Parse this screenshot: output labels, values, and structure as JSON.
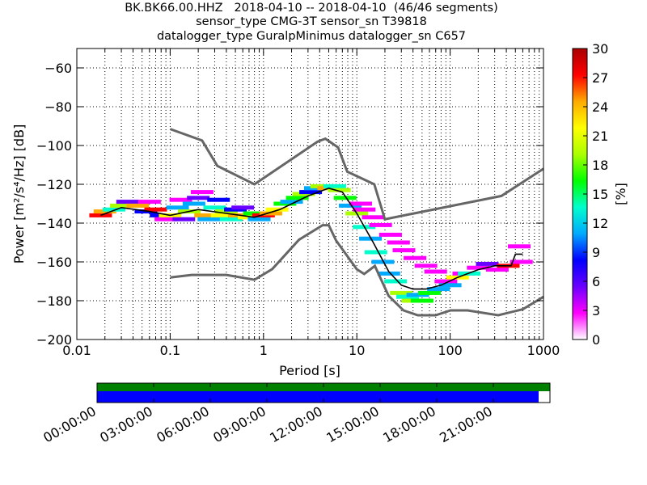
{
  "title": {
    "line1": "BK.BK66.00.HHZ   2018-04-10 -- 2018-04-10  (46/46 segments)",
    "line2": "sensor_type CMG-3T sensor_sn T39818",
    "line3": "datalogger_type GuralpMinimus datalogger_sn C657"
  },
  "chart_data": {
    "type": "heatmap",
    "xlabel": "Period [s]",
    "ylabel": "Power [m²/s⁴/Hz] [dB]",
    "xscale": "log",
    "xlim": [
      0.01,
      1000
    ],
    "ylim": [
      -200,
      -50
    ],
    "x_ticks": [
      {
        "value": 0.01,
        "label": "0.01"
      },
      {
        "value": 0.1,
        "label": "0.1"
      },
      {
        "value": 1,
        "label": "1"
      },
      {
        "value": 10,
        "label": "10"
      },
      {
        "value": 100,
        "label": "100"
      },
      {
        "value": 1000,
        "label": "1000"
      }
    ],
    "y_ticks": [
      {
        "value": -60,
        "label": "−60"
      },
      {
        "value": -80,
        "label": "−80"
      },
      {
        "value": -100,
        "label": "−100"
      },
      {
        "value": -120,
        "label": "−120"
      },
      {
        "value": -140,
        "label": "−140"
      },
      {
        "value": -160,
        "label": "−160"
      },
      {
        "value": -180,
        "label": "−180"
      },
      {
        "value": -200,
        "label": "−200"
      }
    ],
    "grid": true,
    "colorbar": {
      "label": "[%]",
      "range": [
        0,
        30
      ],
      "ticks": [
        0,
        3,
        6,
        9,
        12,
        15,
        18,
        21,
        24,
        27,
        30
      ],
      "colors": [
        "#ffffff",
        "#ff00ff",
        "#6a00ff",
        "#0000ff",
        "#00aaff",
        "#00ffcc",
        "#00ff00",
        "#aaff00",
        "#ffff00",
        "#ffaa00",
        "#ff0000",
        "#aa0000"
      ]
    },
    "noise_models": [
      {
        "name": "high_noise_model",
        "points": [
          [
            0.1,
            -91.5
          ],
          [
            0.22,
            -97.4
          ],
          [
            0.32,
            -110.5
          ],
          [
            0.8,
            -120
          ],
          [
            3.8,
            -98
          ],
          [
            4.6,
            -96.5
          ],
          [
            6.3,
            -101
          ],
          [
            7.9,
            -113.5
          ],
          [
            15.4,
            -120
          ],
          [
            20,
            -138
          ],
          [
            354,
            -126
          ],
          [
            1000,
            -112
          ]
        ]
      },
      {
        "name": "low_noise_model",
        "points": [
          [
            0.1,
            -168
          ],
          [
            0.17,
            -166.7
          ],
          [
            0.4,
            -166.7
          ],
          [
            0.8,
            -169.2
          ],
          [
            1.24,
            -163.7
          ],
          [
            2.4,
            -148.6
          ],
          [
            4.3,
            -141.1
          ],
          [
            5,
            -141.1
          ],
          [
            6,
            -149
          ],
          [
            10,
            -163.8
          ],
          [
            12,
            -166.2
          ],
          [
            15.6,
            -162.1
          ],
          [
            21.9,
            -177.5
          ],
          [
            31.6,
            -185
          ],
          [
            45,
            -187.5
          ],
          [
            70,
            -187.5
          ],
          [
            101,
            -185
          ],
          [
            154,
            -185
          ],
          [
            328,
            -187.5
          ],
          [
            600,
            -184.4
          ],
          [
            1000,
            -178
          ]
        ]
      }
    ],
    "mode_curve": [
      [
        0.018,
        -136
      ],
      [
        0.03,
        -132
      ],
      [
        0.06,
        -134
      ],
      [
        0.1,
        -136
      ],
      [
        0.2,
        -133
      ],
      [
        0.4,
        -135
      ],
      [
        0.8,
        -137
      ],
      [
        1.5,
        -133
      ],
      [
        3,
        -126
      ],
      [
        5,
        -122
      ],
      [
        7,
        -124
      ],
      [
        10,
        -135
      ],
      [
        15,
        -150
      ],
      [
        22,
        -165
      ],
      [
        30,
        -172
      ],
      [
        40,
        -174
      ],
      [
        55,
        -174
      ],
      [
        80,
        -172
      ],
      [
        120,
        -168
      ],
      [
        200,
        -164
      ],
      [
        300,
        -162
      ],
      [
        450,
        -162
      ],
      [
        500,
        -156
      ],
      [
        600,
        -156
      ]
    ],
    "pdf_cells": [
      {
        "period": 0.018,
        "db": -136,
        "percent": 28
      },
      {
        "period": 0.02,
        "db": -134,
        "percent": 24
      },
      {
        "period": 0.025,
        "db": -133,
        "percent": 14
      },
      {
        "period": 0.03,
        "db": -131,
        "percent": 20
      },
      {
        "period": 0.035,
        "db": -129,
        "percent": 6
      },
      {
        "period": 0.045,
        "db": -131,
        "percent": 24
      },
      {
        "period": 0.055,
        "db": -134,
        "percent": 9
      },
      {
        "period": 0.06,
        "db": -129,
        "percent": 3
      },
      {
        "period": 0.07,
        "db": -133,
        "percent": 26
      },
      {
        "period": 0.08,
        "db": -136,
        "percent": 8
      },
      {
        "period": 0.09,
        "db": -138,
        "percent": 3
      },
      {
        "period": 0.1,
        "db": -136,
        "percent": 22
      },
      {
        "period": 0.12,
        "db": -132,
        "percent": 10
      },
      {
        "period": 0.13,
        "db": -128,
        "percent": 4
      },
      {
        "period": 0.14,
        "db": -138,
        "percent": 5
      },
      {
        "period": 0.16,
        "db": -134,
        "percent": 18
      },
      {
        "period": 0.18,
        "db": -130,
        "percent": 11
      },
      {
        "period": 0.2,
        "db": -127,
        "percent": 6
      },
      {
        "period": 0.22,
        "db": -124,
        "percent": 4
      },
      {
        "period": 0.24,
        "db": -136,
        "percent": 24
      },
      {
        "period": 0.26,
        "db": -138,
        "percent": 12
      },
      {
        "period": 0.3,
        "db": -132,
        "percent": 14
      },
      {
        "period": 0.33,
        "db": -128,
        "percent": 9
      },
      {
        "period": 0.36,
        "db": -136,
        "percent": 21
      },
      {
        "period": 0.4,
        "db": -134,
        "percent": 19
      },
      {
        "period": 0.45,
        "db": -138,
        "percent": 13
      },
      {
        "period": 0.5,
        "db": -133,
        "percent": 8
      },
      {
        "period": 0.55,
        "db": -136,
        "percent": 25
      },
      {
        "period": 0.6,
        "db": -132,
        "percent": 6
      },
      {
        "period": 0.7,
        "db": -137,
        "percent": 22
      },
      {
        "period": 0.8,
        "db": -135,
        "percent": 16
      },
      {
        "period": 0.9,
        "db": -138,
        "percent": 10
      },
      {
        "period": 1,
        "db": -136,
        "percent": 26
      },
      {
        "period": 1.2,
        "db": -135,
        "percent": 24
      },
      {
        "period": 1.4,
        "db": -133,
        "percent": 22
      },
      {
        "period": 1.7,
        "db": -130,
        "percent": 17
      },
      {
        "period": 2,
        "db": -129,
        "percent": 12
      },
      {
        "period": 2.3,
        "db": -127,
        "percent": 16
      },
      {
        "period": 2.7,
        "db": -125,
        "percent": 18
      },
      {
        "period": 3.2,
        "db": -124,
        "percent": 8
      },
      {
        "period": 3.6,
        "db": -122,
        "percent": 12
      },
      {
        "period": 4.2,
        "db": -121,
        "percent": 20
      },
      {
        "period": 5,
        "db": -122,
        "percent": 24
      },
      {
        "period": 5.8,
        "db": -121,
        "percent": 14
      },
      {
        "period": 6.5,
        "db": -123,
        "percent": 20
      },
      {
        "period": 7.5,
        "db": -127,
        "percent": 16
      },
      {
        "period": 8.5,
        "db": -131,
        "percent": 12
      },
      {
        "period": 10,
        "db": -135,
        "percent": 18
      },
      {
        "period": 11,
        "db": -130,
        "percent": 3
      },
      {
        "period": 12,
        "db": -142,
        "percent": 14
      },
      {
        "period": 12,
        "db": -133,
        "percent": 3
      },
      {
        "period": 14,
        "db": -148,
        "percent": 12
      },
      {
        "period": 15,
        "db": -137,
        "percent": 3
      },
      {
        "period": 16,
        "db": -155,
        "percent": 14
      },
      {
        "period": 18,
        "db": -141,
        "percent": 3
      },
      {
        "period": 19,
        "db": -160,
        "percent": 12
      },
      {
        "period": 22,
        "db": -166,
        "percent": 12
      },
      {
        "period": 23,
        "db": -146,
        "percent": 3
      },
      {
        "period": 26,
        "db": -170,
        "percent": 14
      },
      {
        "period": 28,
        "db": -150,
        "percent": 3
      },
      {
        "period": 30,
        "db": -176,
        "percent": 18
      },
      {
        "period": 32,
        "db": -154,
        "percent": 3
      },
      {
        "period": 35,
        "db": -178,
        "percent": 14
      },
      {
        "period": 40,
        "db": -180,
        "percent": 18
      },
      {
        "period": 42,
        "db": -158,
        "percent": 3
      },
      {
        "period": 45,
        "db": -177,
        "percent": 12
      },
      {
        "period": 50,
        "db": -180,
        "percent": 15
      },
      {
        "period": 55,
        "db": -162,
        "percent": 3
      },
      {
        "period": 60,
        "db": -176,
        "percent": 16
      },
      {
        "period": 70,
        "db": -165,
        "percent": 3
      },
      {
        "period": 75,
        "db": -174,
        "percent": 12
      },
      {
        "period": 90,
        "db": -170,
        "percent": 4
      },
      {
        "period": 100,
        "db": -172,
        "percent": 12
      },
      {
        "period": 120,
        "db": -168,
        "percent": 22
      },
      {
        "period": 140,
        "db": -166,
        "percent": 4
      },
      {
        "period": 160,
        "db": -166,
        "percent": 14
      },
      {
        "period": 200,
        "db": -163,
        "percent": 4
      },
      {
        "period": 250,
        "db": -161,
        "percent": 6
      },
      {
        "period": 320,
        "db": -164,
        "percent": 4
      },
      {
        "period": 420,
        "db": -162,
        "percent": 28
      },
      {
        "period": 550,
        "db": -152,
        "percent": 4
      },
      {
        "period": 580,
        "db": -160,
        "percent": 4
      }
    ],
    "timeline": {
      "tick_labels": [
        "00:00:00",
        "03:00:00",
        "06:00:00",
        "09:00:00",
        "12:00:00",
        "15:00:00",
        "18:00:00",
        "21:00:00"
      ],
      "tick_hours": [
        0,
        3,
        6,
        9,
        12,
        15,
        18,
        21
      ],
      "range_hours": [
        0,
        24
      ],
      "data_available_hours": [
        0,
        24
      ],
      "psd_used_hours": [
        0,
        23.4
      ],
      "data_color": "#008000",
      "psd_color": "#0000ff"
    },
    "colors": {
      "noise_model": "#666666",
      "mode_curve": "#000000"
    }
  }
}
